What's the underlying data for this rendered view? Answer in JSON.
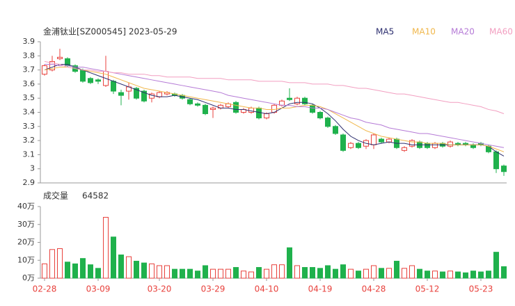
{
  "chart_data": [
    {
      "type": "candlestick",
      "title": "金浦钛业[SZ000545] 2023-05-29",
      "up_color": "#e8413c",
      "down_color": "#1fb14c",
      "open": [
        3.67,
        3.7,
        3.78,
        3.78,
        3.73,
        3.7,
        3.64,
        3.63,
        3.59,
        3.62,
        3.54,
        3.55,
        3.57,
        3.55,
        3.5,
        3.51,
        3.53,
        3.53,
        3.52,
        3.49,
        3.46,
        3.45,
        3.42,
        3.43,
        3.44,
        3.47,
        3.4,
        3.4,
        3.43,
        3.36,
        3.4,
        3.45,
        3.5,
        3.46,
        3.5,
        3.45,
        3.4,
        3.36,
        3.3,
        3.24,
        3.15,
        3.18,
        3.16,
        3.17,
        3.21,
        3.19,
        3.21,
        3.13,
        3.16,
        3.19,
        3.18,
        3.15,
        3.18,
        3.16,
        3.18,
        3.18,
        3.17,
        3.18,
        3.16,
        3.12,
        3.02
      ],
      "high": [
        3.74,
        3.8,
        3.85,
        3.79,
        3.74,
        3.71,
        3.65,
        3.64,
        3.8,
        3.63,
        3.56,
        3.61,
        3.58,
        3.56,
        3.54,
        3.55,
        3.55,
        3.54,
        3.53,
        3.5,
        3.47,
        3.46,
        3.44,
        3.46,
        3.47,
        3.48,
        3.43,
        3.44,
        3.44,
        3.4,
        3.46,
        3.49,
        3.57,
        3.51,
        3.51,
        3.46,
        3.41,
        3.37,
        3.31,
        3.25,
        3.19,
        3.19,
        3.21,
        3.25,
        3.22,
        3.22,
        3.22,
        3.16,
        3.21,
        3.2,
        3.19,
        3.19,
        3.19,
        3.2,
        3.19,
        3.19,
        3.18,
        3.19,
        3.17,
        3.13,
        3.03
      ],
      "low": [
        3.66,
        3.69,
        3.77,
        3.72,
        3.68,
        3.61,
        3.6,
        3.6,
        3.58,
        3.53,
        3.45,
        3.49,
        3.49,
        3.47,
        3.47,
        3.5,
        3.52,
        3.51,
        3.49,
        3.45,
        3.44,
        3.38,
        3.36,
        3.42,
        3.43,
        3.39,
        3.39,
        3.39,
        3.35,
        3.35,
        3.39,
        3.44,
        3.48,
        3.45,
        3.45,
        3.39,
        3.35,
        3.29,
        3.24,
        3.12,
        3.14,
        3.14,
        3.14,
        3.14,
        3.18,
        3.18,
        3.14,
        3.12,
        3.15,
        3.14,
        3.14,
        3.14,
        3.15,
        3.15,
        3.16,
        3.16,
        3.14,
        3.16,
        3.11,
        2.97,
        2.95
      ],
      "close": [
        3.73,
        3.76,
        3.79,
        3.73,
        3.69,
        3.62,
        3.61,
        3.62,
        3.69,
        3.55,
        3.52,
        3.58,
        3.5,
        3.48,
        3.53,
        3.54,
        3.54,
        3.52,
        3.5,
        3.46,
        3.45,
        3.39,
        3.43,
        3.45,
        3.46,
        3.4,
        3.42,
        3.43,
        3.36,
        3.39,
        3.45,
        3.48,
        3.49,
        3.5,
        3.46,
        3.4,
        3.36,
        3.3,
        3.25,
        3.13,
        3.18,
        3.15,
        3.2,
        3.24,
        3.19,
        3.21,
        3.15,
        3.15,
        3.2,
        3.15,
        3.15,
        3.18,
        3.16,
        3.19,
        3.17,
        3.17,
        3.15,
        3.17,
        3.12,
        3.0,
        2.98
      ],
      "series": [
        {
          "name": "MA5",
          "color": "#2b2d6e",
          "values": [
            3.7,
            3.72,
            3.74,
            3.74,
            3.72,
            3.7,
            3.68,
            3.66,
            3.64,
            3.62,
            3.6,
            3.58,
            3.56,
            3.54,
            3.52,
            3.51,
            3.51,
            3.52,
            3.51,
            3.5,
            3.49,
            3.47,
            3.45,
            3.43,
            3.43,
            3.42,
            3.42,
            3.41,
            3.4,
            3.39,
            3.4,
            3.43,
            3.46,
            3.47,
            3.47,
            3.46,
            3.43,
            3.39,
            3.34,
            3.28,
            3.23,
            3.2,
            3.18,
            3.17,
            3.18,
            3.19,
            3.18,
            3.18,
            3.17,
            3.17,
            3.17,
            3.17,
            3.17,
            3.17,
            3.17,
            3.17,
            3.17,
            3.17,
            3.16,
            3.12,
            3.09
          ]
        },
        {
          "name": "MA10",
          "color": "#f0b74b",
          "values": [
            3.7,
            3.71,
            3.72,
            3.72,
            3.71,
            3.7,
            3.69,
            3.68,
            3.67,
            3.65,
            3.63,
            3.61,
            3.59,
            3.57,
            3.56,
            3.55,
            3.54,
            3.53,
            3.52,
            3.51,
            3.5,
            3.49,
            3.48,
            3.47,
            3.46,
            3.45,
            3.44,
            3.43,
            3.43,
            3.42,
            3.42,
            3.43,
            3.43,
            3.44,
            3.45,
            3.45,
            3.44,
            3.42,
            3.39,
            3.36,
            3.33,
            3.3,
            3.27,
            3.25,
            3.23,
            3.22,
            3.21,
            3.2,
            3.19,
            3.19,
            3.18,
            3.18,
            3.18,
            3.17,
            3.17,
            3.17,
            3.17,
            3.17,
            3.16,
            3.14,
            3.12
          ]
        },
        {
          "name": "MA20",
          "color": "#b57ad6",
          "values": [
            3.74,
            3.74,
            3.73,
            3.73,
            3.72,
            3.72,
            3.71,
            3.7,
            3.69,
            3.68,
            3.67,
            3.66,
            3.65,
            3.64,
            3.63,
            3.62,
            3.61,
            3.6,
            3.59,
            3.58,
            3.57,
            3.56,
            3.55,
            3.54,
            3.52,
            3.51,
            3.5,
            3.49,
            3.48,
            3.47,
            3.46,
            3.45,
            3.45,
            3.44,
            3.44,
            3.43,
            3.43,
            3.42,
            3.4,
            3.38,
            3.36,
            3.35,
            3.33,
            3.32,
            3.31,
            3.29,
            3.28,
            3.27,
            3.26,
            3.25,
            3.25,
            3.24,
            3.23,
            3.22,
            3.21,
            3.2,
            3.19,
            3.18,
            3.17,
            3.16,
            3.15
          ]
        },
        {
          "name": "MA60",
          "color": "#f29ec0",
          "values": [
            3.76,
            3.75,
            3.74,
            3.72,
            3.71,
            3.7,
            3.7,
            3.69,
            3.69,
            3.68,
            3.68,
            3.67,
            3.67,
            3.67,
            3.66,
            3.66,
            3.65,
            3.65,
            3.65,
            3.65,
            3.64,
            3.64,
            3.64,
            3.64,
            3.63,
            3.63,
            3.63,
            3.63,
            3.62,
            3.62,
            3.62,
            3.62,
            3.61,
            3.61,
            3.61,
            3.6,
            3.6,
            3.6,
            3.59,
            3.59,
            3.58,
            3.57,
            3.57,
            3.56,
            3.55,
            3.54,
            3.53,
            3.53,
            3.52,
            3.51,
            3.5,
            3.49,
            3.48,
            3.47,
            3.47,
            3.46,
            3.45,
            3.44,
            3.42,
            3.41,
            3.39
          ]
        }
      ],
      "ylim": [
        2.9,
        3.9
      ],
      "yticks": [
        3.9,
        3.8,
        3.7,
        3.6,
        3.5,
        3.4,
        3.3,
        3.2,
        3.1,
        3,
        2.9
      ]
    },
    {
      "type": "bar",
      "title": "成交量",
      "latest_label": "64582",
      "categories": [
        "02-28",
        null,
        null,
        null,
        null,
        null,
        null,
        "03-09",
        null,
        null,
        null,
        null,
        null,
        null,
        null,
        "03-20",
        null,
        null,
        null,
        null,
        null,
        null,
        "03-29",
        null,
        null,
        null,
        null,
        null,
        null,
        "04-10",
        null,
        null,
        null,
        null,
        null,
        null,
        "04-19",
        null,
        null,
        null,
        null,
        null,
        null,
        "04-28",
        null,
        null,
        null,
        null,
        null,
        null,
        "05-12",
        null,
        null,
        null,
        null,
        null,
        null,
        "05-23",
        null,
        null,
        null
      ],
      "values": [
        8,
        16,
        16.5,
        9,
        8,
        11,
        7.5,
        5.5,
        34,
        23,
        13,
        12,
        9.5,
        8.5,
        8,
        7,
        7,
        5,
        5,
        5,
        4,
        7,
        5,
        5,
        5,
        6,
        4,
        3.5,
        6,
        5,
        7.5,
        7.5,
        17,
        7,
        6,
        6,
        5.5,
        7,
        5,
        7.5,
        5,
        4,
        5,
        7,
        5.5,
        5.5,
        9.5,
        5.5,
        7,
        5,
        4,
        4,
        3.5,
        4,
        3.5,
        3,
        4,
        3.5,
        4,
        14.5,
        6.4582
      ],
      "ylim": [
        0,
        40
      ],
      "yticks": [
        {
          "value": 40,
          "label": "40万"
        },
        {
          "value": 30,
          "label": "30万"
        },
        {
          "value": 20,
          "label": "20万"
        },
        {
          "value": 10,
          "label": "10万"
        },
        {
          "value": 0,
          "label": "0万"
        }
      ]
    }
  ]
}
